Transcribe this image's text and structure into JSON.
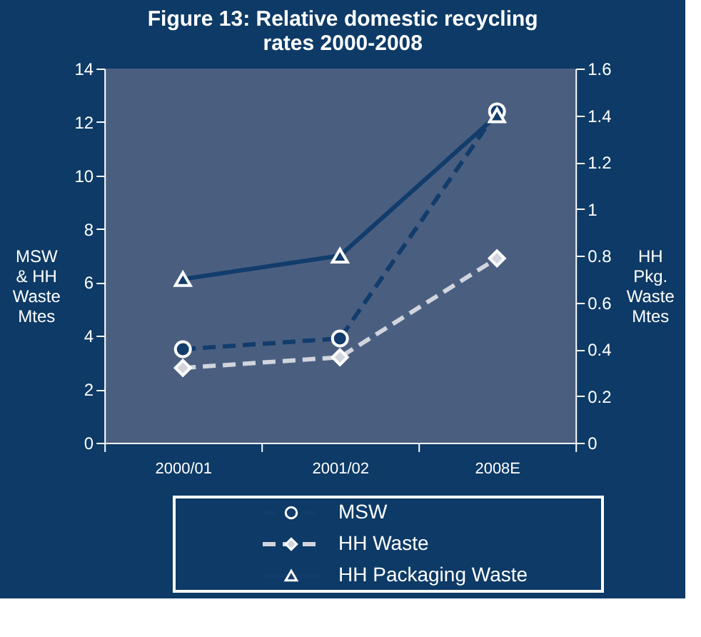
{
  "chart_data": {
    "type": "line",
    "title": "Figure 13: Relative domestic recycling rates 2000-2008",
    "ylabel": "MSW & HH Waste Mtes",
    "y2label": "HH Pkg. Waste Mtes",
    "categories": [
      "2000/01",
      "2001/02",
      "2008E"
    ],
    "ylim": [
      0,
      14
    ],
    "yticks": [
      0,
      2,
      4,
      6,
      8,
      10,
      12,
      14
    ],
    "y2lim": [
      0,
      1.6
    ],
    "y2ticks": [
      0,
      0.2,
      0.4,
      0.6,
      {
        "value": 0.8,
        "label": "0.8"
      },
      1,
      1.2,
      1.4,
      1.6
    ],
    "legend": "bottom",
    "grid": false,
    "series": [
      {
        "name": "MSW",
        "color": "#123c6b",
        "values": [
          3.5,
          3.9,
          12.4
        ],
        "marker": "circle",
        "line_style": "dashed"
      },
      {
        "name": "HH Waste",
        "color": "#d2d5de",
        "values": [
          2.8,
          3.2,
          6.9
        ],
        "marker": "diamond",
        "line_style": "dashed"
      },
      {
        "name": "HH Packaging Waste",
        "color": "#123c6b",
        "values": [
          0.7,
          0.8,
          1.4
        ],
        "marker": "triangle",
        "line_style": "solid",
        "axis": "y2"
      }
    ]
  }
}
